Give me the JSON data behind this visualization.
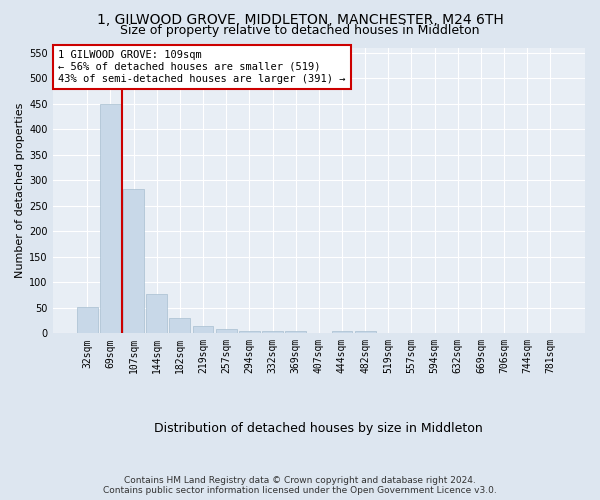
{
  "title_line1": "1, GILWOOD GROVE, MIDDLETON, MANCHESTER, M24 6TH",
  "title_line2": "Size of property relative to detached houses in Middleton",
  "xlabel": "Distribution of detached houses by size in Middleton",
  "ylabel": "Number of detached properties",
  "footer_line1": "Contains HM Land Registry data © Crown copyright and database right 2024.",
  "footer_line2": "Contains public sector information licensed under the Open Government Licence v3.0.",
  "bin_labels": [
    "32sqm",
    "69sqm",
    "107sqm",
    "144sqm",
    "182sqm",
    "219sqm",
    "257sqm",
    "294sqm",
    "332sqm",
    "369sqm",
    "407sqm",
    "444sqm",
    "482sqm",
    "519sqm",
    "557sqm",
    "594sqm",
    "632sqm",
    "669sqm",
    "706sqm",
    "744sqm",
    "781sqm"
  ],
  "bar_values": [
    52,
    450,
    283,
    76,
    30,
    14,
    9,
    4,
    5,
    4,
    0,
    5,
    5,
    0,
    0,
    0,
    0,
    0,
    0,
    0,
    0
  ],
  "bar_color": "#c8d8e8",
  "bar_edge_color": "#a8bfd0",
  "annotation_text_line1": "1 GILWOOD GROVE: 109sqm",
  "annotation_text_line2": "← 56% of detached houses are smaller (519)",
  "annotation_text_line3": "43% of semi-detached houses are larger (391) →",
  "annotation_box_facecolor": "#ffffff",
  "annotation_box_edgecolor": "#cc0000",
  "vline_color": "#cc0000",
  "vline_x": 1.5,
  "ylim": [
    0,
    560
  ],
  "yticks": [
    0,
    50,
    100,
    150,
    200,
    250,
    300,
    350,
    400,
    450,
    500,
    550
  ],
  "bg_color": "#dde6f0",
  "plot_bg_color": "#e8eef5",
  "grid_color": "#ffffff",
  "title_fontsize": 10,
  "subtitle_fontsize": 9,
  "ylabel_fontsize": 8,
  "xlabel_fontsize": 9,
  "tick_fontsize": 7,
  "footer_fontsize": 6.5,
  "ann_fontsize": 7.5
}
